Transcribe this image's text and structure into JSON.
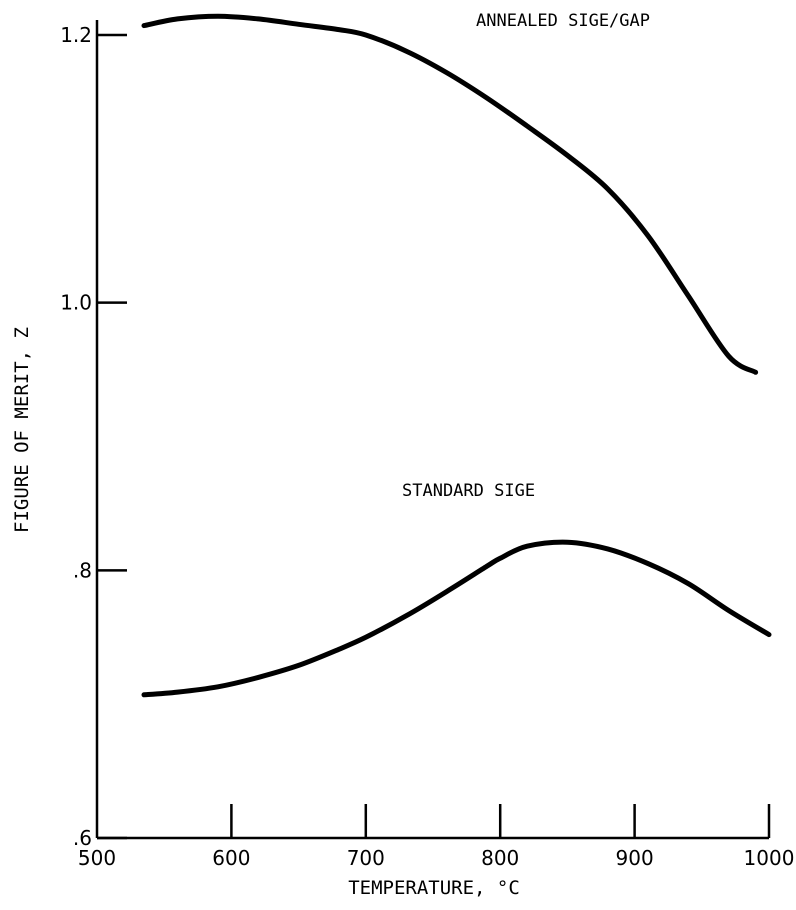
{
  "chart_data": {
    "type": "line",
    "xlabel": "TEMPERATURE, °C",
    "ylabel": "FIGURE OF MERIT, Z",
    "xlim": [
      500,
      1000
    ],
    "ylim": [
      0.6,
      1.22
    ],
    "x_ticks": [
      {
        "value": 500,
        "label": "500"
      },
      {
        "value": 600,
        "label": "600"
      },
      {
        "value": 700,
        "label": "700"
      },
      {
        "value": 800,
        "label": "800"
      },
      {
        "value": 900,
        "label": "900"
      },
      {
        "value": 1000,
        "label": "1000"
      }
    ],
    "y_ticks": [
      {
        "value": 0.6,
        "label": ".6"
      },
      {
        "value": 0.8,
        "label": ".8"
      },
      {
        "value": 1.0,
        "label": "1.0"
      },
      {
        "value": 1.2,
        "label": "1.2"
      }
    ],
    "grid": false,
    "series": [
      {
        "name": "ANNEALED SiGe/GaP",
        "x": [
          535,
          560,
          590,
          620,
          650,
          680,
          700,
          730,
          760,
          790,
          820,
          850,
          880,
          910,
          940,
          970,
          990
        ],
        "y": [
          1.207,
          1.212,
          1.214,
          1.212,
          1.208,
          1.204,
          1.2,
          1.188,
          1.172,
          1.153,
          1.132,
          1.11,
          1.085,
          1.05,
          1.005,
          0.96,
          0.948
        ]
      },
      {
        "name": "STANDARD SiGe",
        "x": [
          535,
          560,
          590,
          620,
          650,
          680,
          700,
          730,
          760,
          790,
          800,
          820,
          850,
          880,
          910,
          940,
          970,
          1000
        ],
        "y": [
          0.707,
          0.709,
          0.713,
          0.72,
          0.729,
          0.741,
          0.75,
          0.766,
          0.784,
          0.803,
          0.809,
          0.818,
          0.821,
          0.816,
          0.805,
          0.79,
          0.77,
          0.752
        ]
      }
    ],
    "annotations": [
      {
        "text": "ANNEALED SIGE/GAP",
        "series": 0
      },
      {
        "text": "STANDARD SIGE",
        "series": 1
      }
    ]
  }
}
